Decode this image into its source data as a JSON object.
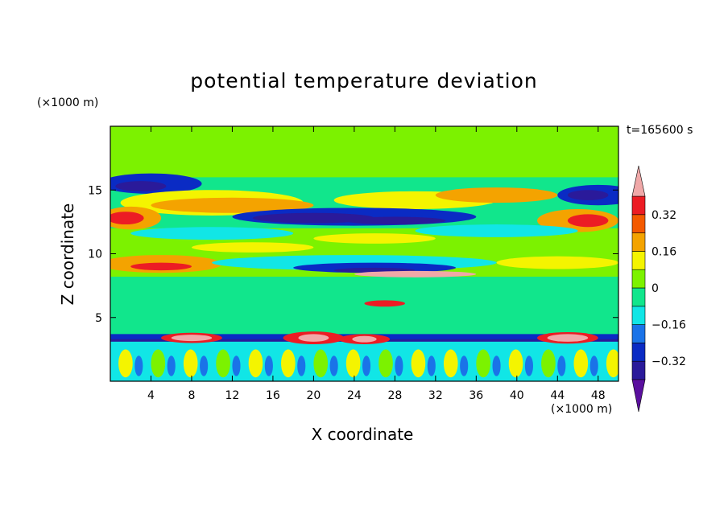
{
  "chart_data": {
    "type": "heatmap",
    "title": "potential temperature deviation",
    "xlabel": "X coordinate",
    "ylabel": "Z coordinate",
    "x_unit": "(×1000 m)",
    "y_unit": "(×1000 m)",
    "time_label": "t=165600 s",
    "xlim": [
      0,
      50
    ],
    "ylim": [
      0,
      20
    ],
    "x_ticks": [
      4,
      8,
      12,
      16,
      20,
      24,
      28,
      32,
      36,
      40,
      44,
      48
    ],
    "y_ticks": [
      5,
      10,
      15
    ],
    "colorbar": {
      "levels": [
        -0.4,
        -0.32,
        -0.24,
        -0.16,
        -0.08,
        0,
        0.08,
        0.16,
        0.24,
        0.32,
        0.4
      ],
      "labels": [
        "-0.32",
        "-0.16",
        "0",
        "0.16",
        "0.32"
      ],
      "label_values": [
        -0.32,
        -0.16,
        0,
        0.16,
        0.32
      ],
      "colors": [
        "#5a0f9e",
        "#2a1a9a",
        "#0a2bc4",
        "#1a73e8",
        "#11e6e6",
        "#11e68c",
        "#7cf200",
        "#f4f400",
        "#f4a300",
        "#f45a00",
        "#ec1c24",
        "#f0a8a8"
      ],
      "extend": "both"
    }
  },
  "colors": {
    "background": "#ffffff",
    "frame": "#000000",
    "field_base": "#11e68c",
    "warm_band": "#f4a300",
    "cold_band": "#2a1a9a",
    "warm_extreme": "#f0a8a8",
    "cold_extreme": "#5a0f9e"
  }
}
